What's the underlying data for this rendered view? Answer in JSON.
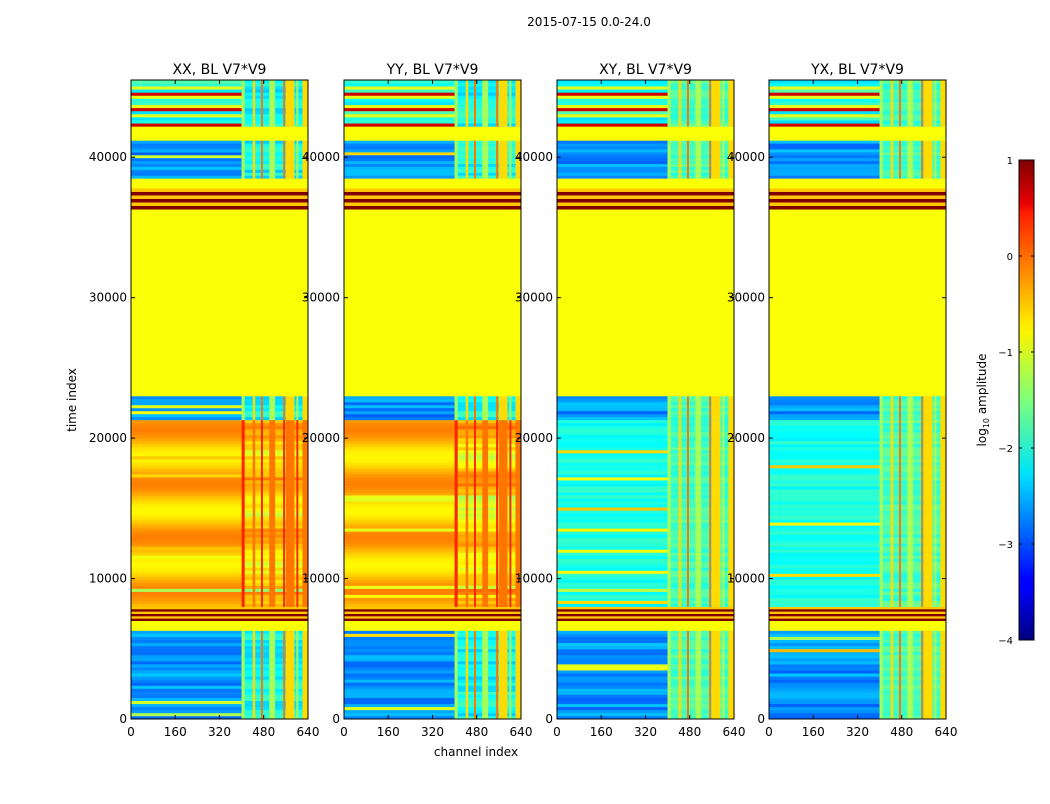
{
  "suptitle": "2015-07-15 0.0-24.0",
  "chart_data": {
    "type": "heatmap",
    "panels": [
      {
        "title": "XX, BL V7*V9",
        "pol": "XX"
      },
      {
        "title": "YY, BL V7*V9",
        "pol": "YY"
      },
      {
        "title": "XY, BL V7*V9",
        "pol": "XY"
      },
      {
        "title": "YX, BL V7*V9",
        "pol": "YX"
      }
    ],
    "xlabel": "channel index",
    "ylabel": "time index",
    "xlim": [
      0,
      640
    ],
    "ylim": [
      0,
      45500
    ],
    "xticks": [
      0,
      160,
      320,
      480,
      640
    ],
    "xtick_labels": [
      "0",
      "160",
      "320",
      "480",
      "640"
    ],
    "yticks": [
      0,
      10000,
      20000,
      30000,
      40000
    ],
    "ytick_labels": [
      "0",
      "10000",
      "20000",
      "30000",
      "40000"
    ],
    "colorbar": {
      "label": "log10 amplitude",
      "label_parts": {
        "prefix": "log",
        "sub": "10",
        "suffix": " amplitude"
      },
      "range": [
        -4,
        1
      ],
      "ticks": [
        1,
        0,
        -1,
        -2,
        -3,
        -4
      ],
      "tick_labels": [
        "1",
        "0",
        "−1",
        "−2",
        "−3",
        "−4"
      ],
      "colormap": "jet"
    },
    "time_segments": [
      {
        "t0": 0,
        "t1": 6300,
        "parallel": "low_noise_with_rfi",
        "cross": "low_noise_with_rfi"
      },
      {
        "t0": 6300,
        "t1": 7000,
        "parallel": "flagged",
        "cross": "flagged"
      },
      {
        "t0": 7000,
        "t1": 8000,
        "parallel": "saturated_stripes",
        "cross": "saturated_stripes"
      },
      {
        "t0": 8000,
        "t1": 21300,
        "parallel": "strong_signal",
        "cross": "weak_signal"
      },
      {
        "t0": 21300,
        "t1": 23000,
        "parallel": "low_noise_with_rfi",
        "cross": "low_noise_with_rfi"
      },
      {
        "t0": 23000,
        "t1": 36300,
        "parallel": "flagged",
        "cross": "flagged"
      },
      {
        "t0": 36300,
        "t1": 37800,
        "parallel": "saturated_stripes",
        "cross": "saturated_stripes"
      },
      {
        "t0": 37800,
        "t1": 38500,
        "parallel": "flagged",
        "cross": "flagged"
      },
      {
        "t0": 38500,
        "t1": 41200,
        "parallel": "low_noise_with_rfi",
        "cross": "low_noise_with_rfi"
      },
      {
        "t0": 41200,
        "t1": 42200,
        "parallel": "flagged",
        "cross": "flagged"
      },
      {
        "t0": 42200,
        "t1": 45500,
        "parallel": "mixed_stripes",
        "cross": "mixed_stripes"
      }
    ],
    "rfi_channel_range": [
      400,
      640
    ]
  }
}
